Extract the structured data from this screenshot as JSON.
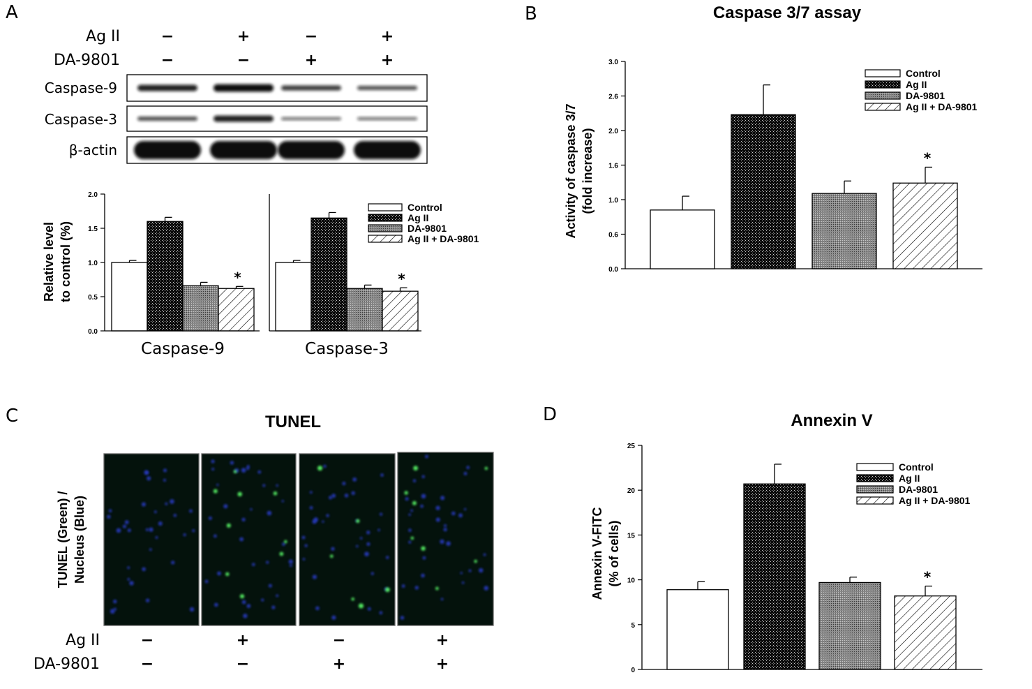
{
  "colors": {
    "axis": "#000000",
    "blot_bg": "#ffffff",
    "band": "#0b0b0b",
    "micro_bg": "#04120c",
    "nucleus": "#2a3ccc",
    "tunel": "#5cff6a"
  },
  "panels": {
    "a": {
      "letter": "A",
      "rows": [
        {
          "label": "Ag II",
          "signs": [
            "−",
            "+",
            "−",
            "+"
          ]
        },
        {
          "label": "DA-9801",
          "signs": [
            "−",
            "−",
            "+",
            "+"
          ]
        }
      ],
      "blots": [
        {
          "label": "Caspase-9",
          "intensity": [
            0.75,
            0.9,
            0.6,
            0.5
          ]
        },
        {
          "label": "Caspase-3",
          "intensity": [
            0.5,
            0.75,
            0.35,
            0.35
          ]
        },
        {
          "label": "β-actin",
          "intensity": [
            1,
            1,
            1,
            1
          ]
        }
      ]
    },
    "b": {
      "letter": "B",
      "title": "Caspase 3/7 assay"
    },
    "c": {
      "letter": "C",
      "title": "TUNEL",
      "ylabel_line1": "TUNEL (Green) /",
      "ylabel_line2": "Nucleus (Blue)",
      "rows": [
        {
          "label": "Ag II",
          "signs": [
            "−",
            "+",
            "−",
            "+"
          ]
        },
        {
          "label": "DA-9801",
          "signs": [
            "−",
            "−",
            "+",
            "+"
          ]
        }
      ],
      "green_counts": [
        0,
        9,
        6,
        8
      ]
    },
    "d": {
      "letter": "D",
      "title": "Annexin V"
    }
  },
  "chart_data": [
    {
      "id": "a-quant",
      "type": "bar",
      "categories": [
        "Caspase-9",
        "Caspase-3"
      ],
      "series": [
        {
          "name": "Control",
          "values": [
            1.0,
            1.0
          ],
          "errors": [
            0.03,
            0.03
          ],
          "pattern": "white"
        },
        {
          "name": "Ag II",
          "values": [
            1.6,
            1.65
          ],
          "errors": [
            0.06,
            0.08
          ],
          "pattern": "dots"
        },
        {
          "name": "DA-9801",
          "values": [
            0.66,
            0.62
          ],
          "errors": [
            0.05,
            0.05
          ],
          "pattern": "grey"
        },
        {
          "name": "Ag II + DA-9801",
          "values": [
            0.62,
            0.58
          ],
          "errors": [
            0.03,
            0.05
          ],
          "pattern": "hatch"
        }
      ],
      "star_series": 3,
      "star_label": "*",
      "ylabel_line1": "Relative level",
      "ylabel_line2": "to control (%)",
      "ylim": [
        0,
        2.0
      ],
      "yticks": [
        "0.0",
        "0.5",
        "1.0",
        "1.5",
        "2.0"
      ],
      "legend": "top-right"
    },
    {
      "id": "b-caspase37",
      "type": "bar",
      "title": "Caspase 3/7 assay",
      "categories": [
        "Control",
        "Ag II",
        "DA-9801",
        "Ag II + DA-9801"
      ],
      "values": [
        0.85,
        2.23,
        1.09,
        1.24
      ],
      "errors": [
        0.2,
        0.43,
        0.18,
        0.23
      ],
      "star_series": 3,
      "star_label": "*",
      "ylabel_line1": "Activity of caspase 3/7",
      "ylabel_line2": "(fold increase)",
      "ylim": [
        0,
        3.0
      ],
      "yticks": [
        "0.0",
        "0.6",
        "1.0",
        "1.6",
        "2.0",
        "2.6",
        "3.0"
      ],
      "legend": "top-right"
    },
    {
      "id": "d-annexin",
      "type": "bar",
      "title": "Annexin V",
      "categories": [
        "Control",
        "Ag II",
        "DA-9801",
        "Ag II + DA-9801"
      ],
      "values": [
        8.9,
        20.7,
        9.7,
        8.2
      ],
      "errors": [
        0.9,
        2.2,
        0.6,
        1.1
      ],
      "star_series": 3,
      "star_label": "*",
      "ylabel_line1": "Annexin V-FITC",
      "ylabel_line2": "(% of cells)",
      "ylim": [
        0,
        25
      ],
      "yticks": [
        "0",
        "5",
        "10",
        "15",
        "20",
        "25"
      ],
      "legend": "top-right"
    }
  ]
}
